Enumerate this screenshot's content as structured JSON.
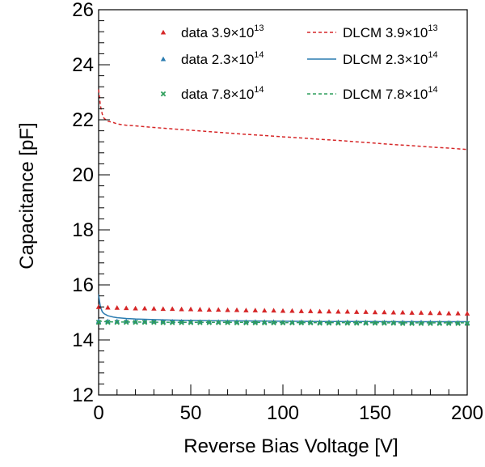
{
  "chart_data": {
    "type": "line",
    "xlabel": "Reverse Bias Voltage [V]",
    "ylabel": "Capacitance [pF]",
    "xlim": [
      0,
      200
    ],
    "ylim": [
      12,
      26
    ],
    "x_ticks": [
      0,
      50,
      100,
      150,
      200
    ],
    "y_ticks": [
      12,
      14,
      16,
      18,
      20,
      22,
      24,
      26
    ],
    "grid": false,
    "legend_position": "top-right",
    "colors": {
      "red": "#d62728",
      "blue": "#2a7bb0",
      "green": "#2e9e5b"
    },
    "series": [
      {
        "name": "data 3.9×10¹³",
        "label_base": "data 3.9×10",
        "label_exp": "13",
        "kind": "points",
        "marker": "triangle",
        "color": "#d62728",
        "x": [
          0,
          5,
          10,
          15,
          20,
          25,
          30,
          35,
          40,
          45,
          50,
          55,
          60,
          65,
          70,
          75,
          80,
          85,
          90,
          95,
          100,
          105,
          110,
          115,
          120,
          125,
          130,
          135,
          140,
          145,
          150,
          155,
          160,
          165,
          170,
          175,
          180,
          185,
          190,
          195,
          200
        ],
        "y": [
          15.2,
          15.18,
          15.17,
          15.16,
          15.15,
          15.15,
          15.14,
          15.13,
          15.13,
          15.12,
          15.12,
          15.11,
          15.1,
          15.1,
          15.09,
          15.09,
          15.08,
          15.08,
          15.07,
          15.07,
          15.06,
          15.06,
          15.05,
          15.05,
          15.04,
          15.04,
          15.03,
          15.03,
          15.02,
          15.02,
          15.01,
          15.01,
          15.0,
          15.0,
          14.99,
          14.99,
          14.98,
          14.98,
          14.97,
          14.97,
          14.96
        ]
      },
      {
        "name": "data 2.3×10¹⁴",
        "label_base": "data 2.3×10",
        "label_exp": "14",
        "kind": "points",
        "marker": "triangle",
        "color": "#2a7bb0",
        "x": [
          0,
          5,
          10,
          15,
          20,
          25,
          30,
          35,
          40,
          45,
          50,
          55,
          60,
          65,
          70,
          75,
          80,
          85,
          90,
          95,
          100,
          105,
          110,
          115,
          120,
          125,
          130,
          135,
          140,
          145,
          150,
          155,
          160,
          165,
          170,
          175,
          180,
          185,
          190,
          195,
          200
        ],
        "y": [
          14.68,
          14.68,
          14.68,
          14.68,
          14.67,
          14.67,
          14.67,
          14.67,
          14.67,
          14.67,
          14.67,
          14.66,
          14.66,
          14.66,
          14.66,
          14.66,
          14.66,
          14.66,
          14.66,
          14.66,
          14.65,
          14.65,
          14.65,
          14.65,
          14.65,
          14.65,
          14.65,
          14.65,
          14.65,
          14.64,
          14.64,
          14.64,
          14.64,
          14.64,
          14.64,
          14.64,
          14.64,
          14.63,
          14.63,
          14.63,
          14.63
        ]
      },
      {
        "name": "data 7.8×10¹⁴",
        "label_base": "data 7.8×10",
        "label_exp": "14",
        "kind": "points",
        "marker": "cross",
        "color": "#2e9e5b",
        "x": [
          0,
          5,
          10,
          15,
          20,
          25,
          30,
          35,
          40,
          45,
          50,
          55,
          60,
          65,
          70,
          75,
          80,
          85,
          90,
          95,
          100,
          105,
          110,
          115,
          120,
          125,
          130,
          135,
          140,
          145,
          150,
          155,
          160,
          165,
          170,
          175,
          180,
          185,
          190,
          195,
          200
        ],
        "y": [
          14.64,
          14.64,
          14.64,
          14.64,
          14.64,
          14.64,
          14.64,
          14.63,
          14.63,
          14.63,
          14.63,
          14.63,
          14.63,
          14.63,
          14.63,
          14.62,
          14.62,
          14.62,
          14.62,
          14.62,
          14.62,
          14.62,
          14.62,
          14.62,
          14.61,
          14.61,
          14.61,
          14.61,
          14.61,
          14.61,
          14.61,
          14.61,
          14.61,
          14.6,
          14.6,
          14.6,
          14.6,
          14.6,
          14.6,
          14.6,
          14.6
        ]
      },
      {
        "name": "DLCM 3.9×10¹³",
        "label_base": "DLCM 3.9×10",
        "label_exp": "13",
        "kind": "line",
        "dash": "dashed",
        "color": "#d62728",
        "x": [
          0,
          0.5,
          1,
          2,
          3,
          5,
          8,
          10,
          15,
          20,
          30,
          40,
          50,
          60,
          70,
          80,
          90,
          100,
          110,
          120,
          130,
          140,
          150,
          160,
          170,
          180,
          190,
          200
        ],
        "y": [
          23.1,
          22.8,
          22.5,
          22.2,
          22.05,
          21.95,
          21.9,
          21.85,
          21.8,
          21.78,
          21.72,
          21.67,
          21.62,
          21.57,
          21.52,
          21.47,
          21.43,
          21.38,
          21.34,
          21.29,
          21.25,
          21.2,
          21.15,
          21.1,
          21.06,
          21.01,
          20.97,
          20.92
        ]
      },
      {
        "name": "DLCM 2.3×10¹⁴",
        "label_base": "DLCM 2.3×10",
        "label_exp": "14",
        "kind": "line",
        "dash": "solid",
        "color": "#2a7bb0",
        "x": [
          0,
          0.5,
          1,
          2,
          3,
          5,
          8,
          10,
          15,
          20,
          25,
          30,
          40,
          50,
          60,
          80,
          100,
          120,
          140,
          160,
          180,
          200
        ],
        "y": [
          15.65,
          15.4,
          15.2,
          15.02,
          14.95,
          14.88,
          14.83,
          14.81,
          14.78,
          14.76,
          14.75,
          14.74,
          14.72,
          14.71,
          14.7,
          14.69,
          14.68,
          14.67,
          14.67,
          14.66,
          14.66,
          14.66
        ]
      },
      {
        "name": "DLCM 7.8×10¹⁴",
        "label_base": "DLCM 7.8×10",
        "label_exp": "14",
        "kind": "line",
        "dash": "dashed",
        "color": "#2e9e5b",
        "x": [
          0,
          1,
          2,
          5,
          10,
          20,
          40,
          60,
          80,
          100,
          120,
          140,
          160,
          180,
          200
        ],
        "y": [
          14.7,
          14.68,
          14.67,
          14.66,
          14.65,
          14.65,
          14.64,
          14.64,
          14.64,
          14.63,
          14.63,
          14.63,
          14.62,
          14.62,
          14.62
        ]
      }
    ]
  }
}
